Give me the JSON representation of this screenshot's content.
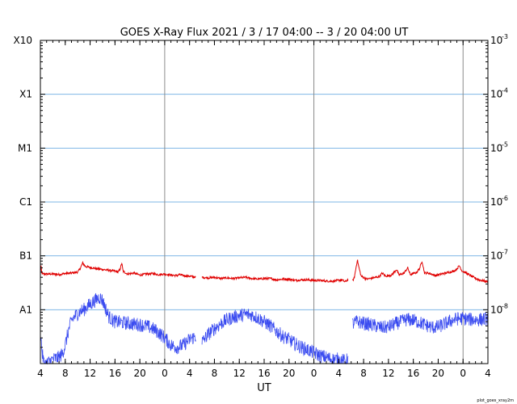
{
  "chart_data": {
    "type": "line",
    "title": "GOES X-Ray Flux   2021  /  3  /  17   04:00 --  3  /  20   04:00   UT",
    "xlabel": "UT",
    "x_unit": "hours since 2021-03-17 04:00 UT",
    "xlim": [
      0,
      72
    ],
    "x_tick_labels": [
      "4",
      "8",
      "12",
      "16",
      "20",
      "0",
      "4",
      "8",
      "12",
      "16",
      "20",
      "0",
      "4",
      "8",
      "12",
      "16",
      "20",
      "0",
      "4"
    ],
    "x_day_boundaries": [
      20,
      44,
      68
    ],
    "y_scale": "log",
    "ylim": [
      1e-09,
      0.001
    ],
    "y_left_labels": [
      {
        "label": "A1",
        "value": 1e-08
      },
      {
        "label": "B1",
        "value": 1e-07
      },
      {
        "label": "C1",
        "value": 1e-06
      },
      {
        "label": "M1",
        "value": 1e-05
      },
      {
        "label": "X1",
        "value": 0.0001
      },
      {
        "label": "X10",
        "value": 0.001
      }
    ],
    "y_right_labels": [
      {
        "mantissa": "10",
        "exponent": "-8",
        "value": 1e-08
      },
      {
        "mantissa": "10",
        "exponent": "-7",
        "value": 1e-07
      },
      {
        "mantissa": "10",
        "exponent": "-6",
        "value": 1e-06
      },
      {
        "mantissa": "10",
        "exponent": "-5",
        "value": 1e-05
      },
      {
        "mantissa": "10",
        "exponent": "-4",
        "value": 0.0001
      },
      {
        "mantissa": "10",
        "exponent": "-3",
        "value": 0.001
      }
    ],
    "grid": {
      "horizontal_at": [
        1e-08,
        1e-07,
        1e-06,
        1e-05,
        0.0001
      ],
      "color": "#7fb7e6"
    },
    "series": [
      {
        "color": "#e00000",
        "segments": [
          [
            [
              0.0,
              5e-08
            ],
            [
              0.1,
              6.6e-08
            ],
            [
              0.2,
              4.8e-08
            ],
            [
              0.4,
              4.6e-08
            ],
            [
              1.0,
              4.6e-08
            ],
            [
              2.0,
              4.6e-08
            ],
            [
              3.0,
              4.5e-08
            ],
            [
              4.0,
              4.7e-08
            ],
            [
              5.0,
              4.8e-08
            ],
            [
              6.0,
              5e-08
            ],
            [
              6.4,
              5.8e-08
            ],
            [
              6.8,
              7.4e-08
            ],
            [
              7.2,
              6.4e-08
            ],
            [
              8.0,
              6.1e-08
            ],
            [
              9.0,
              5.8e-08
            ],
            [
              10.0,
              5.6e-08
            ],
            [
              11.0,
              5.4e-08
            ],
            [
              12.0,
              5.2e-08
            ],
            [
              12.5,
              5e-08
            ],
            [
              12.8,
              5.6e-08
            ],
            [
              13.1,
              7.3e-08
            ],
            [
              13.3,
              5.2e-08
            ],
            [
              14.0,
              4.6e-08
            ],
            [
              15.0,
              4.8e-08
            ],
            [
              16.0,
              4.4e-08
            ],
            [
              17.0,
              4.6e-08
            ],
            [
              18.0,
              4.7e-08
            ],
            [
              19.0,
              4.5e-08
            ],
            [
              20.0,
              4.6e-08
            ],
            [
              21.0,
              4.4e-08
            ],
            [
              22.0,
              4.3e-08
            ],
            [
              22.3,
              4.5e-08
            ],
            [
              23.0,
              4.3e-08
            ],
            [
              24.0,
              4.2e-08
            ],
            [
              25.0,
              4e-08
            ]
          ],
          [
            [
              26.0,
              4e-08
            ],
            [
              27.0,
              3.9e-08
            ],
            [
              28.0,
              4e-08
            ],
            [
              29.0,
              3.8e-08
            ],
            [
              30.0,
              3.9e-08
            ],
            [
              31.0,
              3.8e-08
            ],
            [
              32.0,
              3.9e-08
            ],
            [
              33.0,
              4e-08
            ],
            [
              34.0,
              3.8e-08
            ],
            [
              35.0,
              3.7e-08
            ],
            [
              36.0,
              3.8e-08
            ],
            [
              37.0,
              3.8e-08
            ],
            [
              38.0,
              3.6e-08
            ],
            [
              39.0,
              3.7e-08
            ],
            [
              40.0,
              3.7e-08
            ],
            [
              41.0,
              3.5e-08
            ],
            [
              42.0,
              3.6e-08
            ],
            [
              43.0,
              3.6e-08
            ],
            [
              44.0,
              3.5e-08
            ],
            [
              45.0,
              3.5e-08
            ],
            [
              46.0,
              3.4e-08
            ],
            [
              47.0,
              3.4e-08
            ],
            [
              48.0,
              3.5e-08
            ],
            [
              48.5,
              3.6e-08
            ],
            [
              49.0,
              3.3e-08
            ],
            [
              49.5,
              3.6e-08
            ]
          ],
          [
            [
              50.2,
              3.4e-08
            ],
            [
              50.5,
              3.9e-08
            ],
            [
              51.0,
              8.5e-08
            ],
            [
              51.2,
              6.4e-08
            ],
            [
              51.6,
              4.2e-08
            ],
            [
              52.5,
              3.7e-08
            ],
            [
              53.5,
              3.9e-08
            ],
            [
              54.5,
              4.1e-08
            ],
            [
              55.0,
              4.8e-08
            ],
            [
              55.5,
              4.2e-08
            ],
            [
              56.5,
              4.4e-08
            ],
            [
              57.3,
              5.6e-08
            ],
            [
              57.7,
              4.4e-08
            ],
            [
              58.5,
              4.8e-08
            ],
            [
              59.1,
              6e-08
            ],
            [
              59.5,
              4.5e-08
            ],
            [
              60.5,
              4.9e-08
            ],
            [
              61.0,
              5.8e-08
            ],
            [
              61.4,
              8e-08
            ],
            [
              61.8,
              4.8e-08
            ],
            [
              62.5,
              4.8e-08
            ],
            [
              63.5,
              4.3e-08
            ],
            [
              64.5,
              4.6e-08
            ],
            [
              65.5,
              4.9e-08
            ],
            [
              66.5,
              5.2e-08
            ],
            [
              67.0,
              5.7e-08
            ],
            [
              67.4,
              6.6e-08
            ],
            [
              67.8,
              5.3e-08
            ],
            [
              68.5,
              4.8e-08
            ],
            [
              69.5,
              4.1e-08
            ],
            [
              70.5,
              3.6e-08
            ],
            [
              71.5,
              3.4e-08
            ],
            [
              72.0,
              3.3e-08
            ]
          ]
        ]
      },
      {
        "color": "#3b4cf0",
        "segments": [
          [
            [
              0.0,
              4e-09
            ],
            [
              0.3,
              1.5e-09
            ],
            [
              0.6,
              1e-09
            ],
            [
              1.0,
              1e-09
            ],
            [
              2.0,
              1.2e-09
            ],
            [
              3.0,
              1.3e-09
            ],
            [
              3.5,
              1.5e-09
            ],
            [
              4.0,
              2.2e-09
            ],
            [
              4.5,
              4e-09
            ],
            [
              5.0,
              6.3e-09
            ],
            [
              5.5,
              7.5e-09
            ],
            [
              6.0,
              8.5e-09
            ],
            [
              6.5,
              9.5e-09
            ],
            [
              7.0,
              1e-08
            ],
            [
              7.5,
              1.15e-08
            ],
            [
              8.0,
              1.25e-08
            ],
            [
              8.5,
              1.4e-08
            ],
            [
              9.0,
              1.55e-08
            ],
            [
              9.5,
              1.7e-08
            ],
            [
              10.0,
              1.5e-08
            ],
            [
              10.5,
              1.05e-08
            ],
            [
              11.0,
              7.5e-09
            ],
            [
              11.5,
              6.5e-09
            ],
            [
              12.0,
              6e-09
            ],
            [
              13.0,
              5.8e-09
            ],
            [
              14.0,
              5.6e-09
            ],
            [
              15.0,
              5.4e-09
            ],
            [
              16.0,
              5.3e-09
            ],
            [
              17.0,
              5e-09
            ],
            [
              18.0,
              4.5e-09
            ],
            [
              19.0,
              3.8e-09
            ],
            [
              20.0,
              3e-09
            ],
            [
              21.0,
              2.2e-09
            ],
            [
              22.0,
              2e-09
            ],
            [
              23.0,
              2.2e-09
            ],
            [
              24.0,
              2.8e-09
            ],
            [
              25.0,
              3.2e-09
            ]
          ],
          [
            [
              26.0,
              2.5e-09
            ],
            [
              27.0,
              3.5e-09
            ],
            [
              28.0,
              4.5e-09
            ],
            [
              29.0,
              5.5e-09
            ],
            [
              30.0,
              6.5e-09
            ],
            [
              31.0,
              7.2e-09
            ],
            [
              32.0,
              7.8e-09
            ],
            [
              33.0,
              8.2e-09
            ],
            [
              34.0,
              8e-09
            ],
            [
              35.0,
              7e-09
            ],
            [
              36.0,
              6e-09
            ],
            [
              37.0,
              5e-09
            ],
            [
              38.0,
              4e-09
            ],
            [
              39.0,
              3.2e-09
            ],
            [
              40.0,
              2.8e-09
            ],
            [
              41.0,
              2.3e-09
            ],
            [
              42.0,
              2e-09
            ],
            [
              43.0,
              1.8e-09
            ],
            [
              44.0,
              1.6e-09
            ],
            [
              45.0,
              1.4e-09
            ],
            [
              46.0,
              1.3e-09
            ],
            [
              47.0,
              1.2e-09
            ],
            [
              48.0,
              1.2e-09
            ],
            [
              49.0,
              1.1e-09
            ],
            [
              49.5,
              1.2e-09
            ]
          ],
          [
            [
              50.2,
              5.5e-09
            ],
            [
              51.0,
              6e-09
            ],
            [
              52.0,
              5.6e-09
            ],
            [
              53.0,
              5.3e-09
            ],
            [
              54.0,
              5e-09
            ],
            [
              55.0,
              4.6e-09
            ],
            [
              56.0,
              4.8e-09
            ],
            [
              57.0,
              5.4e-09
            ],
            [
              58.0,
              6e-09
            ],
            [
              59.0,
              6.6e-09
            ],
            [
              60.0,
              6.4e-09
            ],
            [
              61.0,
              5.8e-09
            ],
            [
              62.0,
              5.2e-09
            ],
            [
              63.0,
              4.7e-09
            ],
            [
              64.0,
              4.8e-09
            ],
            [
              65.0,
              5.4e-09
            ],
            [
              66.0,
              6.2e-09
            ],
            [
              67.0,
              6.8e-09
            ],
            [
              68.0,
              6.9e-09
            ],
            [
              69.0,
              6.6e-09
            ],
            [
              70.0,
              6.5e-09
            ],
            [
              71.0,
              6.6e-09
            ],
            [
              72.0,
              6.8e-09
            ]
          ]
        ]
      }
    ],
    "credit": "plot_goes_xray2m"
  }
}
